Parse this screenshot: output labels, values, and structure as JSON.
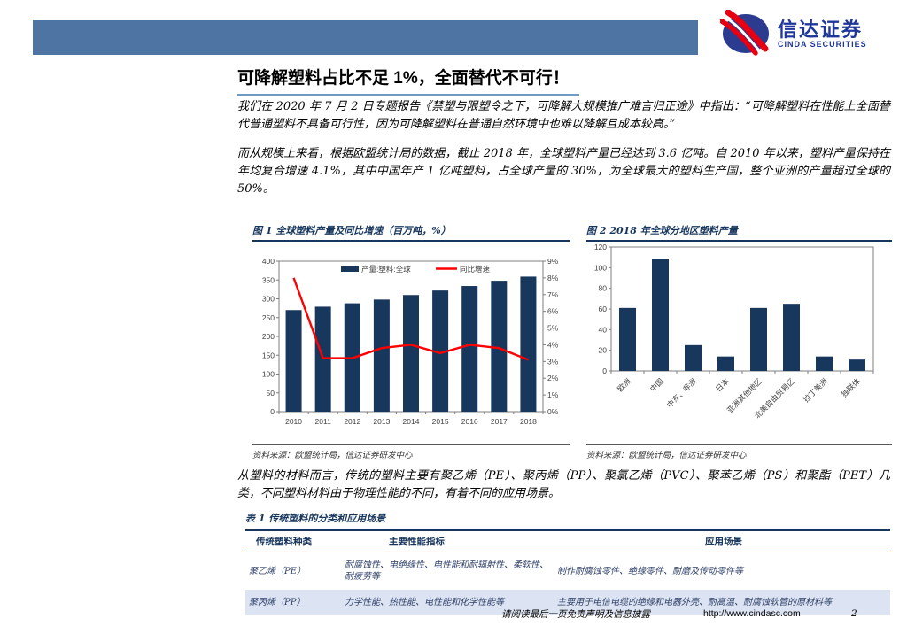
{
  "header": {
    "brand_cn": "信达证券",
    "brand_en": "CINDA SECURITIES",
    "bar_color": "#4e74a3",
    "logo_blue": "#2b3b8f",
    "logo_red": "#e60012"
  },
  "article": {
    "title": "可降解塑料占比不足 1%，全面替代不可行！",
    "paragraphs": [
      "我们在 2020 年 7 月 2 日专题报告《禁塑与限塑令之下，可降解大规模推广难言归正途》中指出：“可降解塑料在性能上全面替代普通塑料不具备可行性，因为可降解塑料在普通自然环境中也难以降解且成本较高。”",
      "而从规模上来看，根据欧盟统计局的数据，截止 2018 年，全球塑料产量已经达到 3.6 亿吨。自 2010 年以来，塑料产量保持在年均复合增速 4.1%，其中中国年产 1 亿吨塑料，占全球产量的 30%，为全球最大的塑料生产国，整个亚洲的产量超过全球的 50%。",
      "从塑料的材料而言，传统的塑料主要有聚乙烯（PE）、聚丙烯（PP）、聚氯乙烯（PVC）、聚苯乙烯（PS）和聚酯（PET）几类，不同塑料材料由于物理性能的不同，有着不同的应用场景。"
    ]
  },
  "chart_data": [
    {
      "type": "bar",
      "title": "图 1  全球塑料产量及同比增速（百万吨，%）",
      "categories": [
        "2010",
        "2011",
        "2012",
        "2013",
        "2014",
        "2015",
        "2016",
        "2017",
        "2018"
      ],
      "series": [
        {
          "name": "产量:塑料:全球",
          "kind": "bar",
          "axis": "left",
          "color": "#17375d",
          "values": [
            270,
            279,
            288,
            298,
            310,
            322,
            334,
            348,
            359
          ]
        },
        {
          "name": "同比增速",
          "kind": "line",
          "axis": "right",
          "color": "#ff0000",
          "values": [
            8.0,
            3.2,
            3.2,
            3.8,
            4.0,
            3.5,
            4.0,
            3.8,
            3.1
          ]
        }
      ],
      "left_axis": {
        "min": 0,
        "max": 400,
        "step": 50,
        "suffix": ""
      },
      "right_axis": {
        "min": 0,
        "max": 9,
        "step": 1,
        "suffix": "%"
      },
      "grid": false,
      "legend_position": "top-center-inside",
      "source": "资料来源：欧盟统计局，信达证券研发中心"
    },
    {
      "type": "bar",
      "title": "图 2  2018 年全球分地区塑料产量",
      "categories": [
        "欧洲",
        "中国",
        "中东、非洲",
        "日本",
        "亚洲其他地区",
        "北美自由贸易区",
        "拉丁美洲",
        "独联体"
      ],
      "values": [
        61,
        108,
        25,
        14,
        61,
        65,
        14,
        11
      ],
      "bar_color": "#17375d",
      "ylim": [
        0,
        120
      ],
      "ystep": 20,
      "grid": false,
      "source": "资料来源：欧盟统计局，信达证券研发中心"
    }
  ],
  "table": {
    "title": "表 1 传统塑料的分类和应用场景",
    "headers": [
      "传统塑料种类",
      "主要性能指标",
      "应用场景"
    ],
    "rows": [
      [
        "聚乙烯（PE）",
        "耐腐蚀性、电绝缘性、电性能和耐辐射性、柔软性、耐疲劳等",
        "制作耐腐蚀零件、绝缘零件、耐磨及传动零件等"
      ],
      [
        "聚丙烯（PP）",
        "力学性能、热性能、电性能和化学性能等",
        "主要用于电信电缆的绝缘和电器外壳、耐高温、耐腐蚀软管的原材料等"
      ]
    ]
  },
  "footer": {
    "disclaimer": "请阅读最后一页免责声明及信息披露",
    "url": "http://www.cindasc.com",
    "page_number": "2"
  }
}
